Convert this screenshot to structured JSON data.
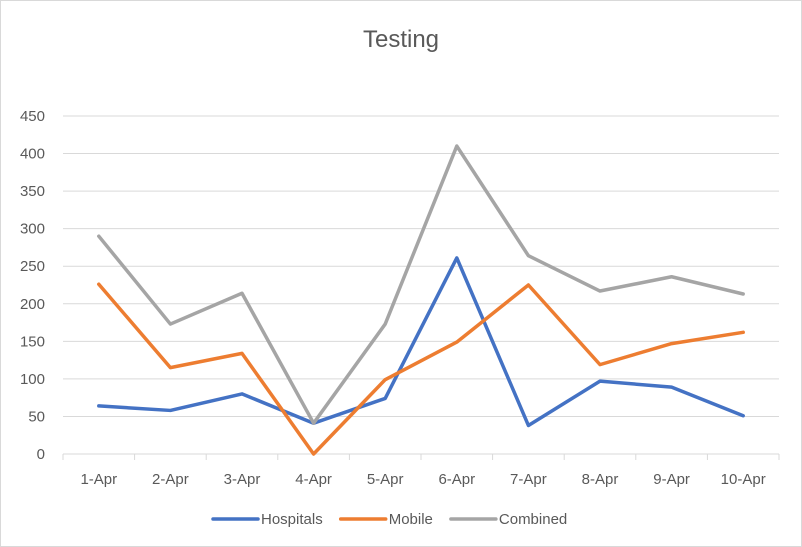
{
  "chart_data": {
    "type": "line",
    "title": "Testing",
    "xlabel": "",
    "ylabel": "",
    "categories": [
      "1-Apr",
      "2-Apr",
      "3-Apr",
      "4-Apr",
      "5-Apr",
      "6-Apr",
      "7-Apr",
      "8-Apr",
      "9-Apr",
      "10-Apr"
    ],
    "ylim": [
      0,
      450
    ],
    "yticks": [
      "0",
      "50",
      "100",
      "150",
      "200",
      "250",
      "300",
      "350",
      "400",
      "450"
    ],
    "grid": true,
    "legend_position": "bottom",
    "series": [
      {
        "name": "Hospitals",
        "color": "#4472C4",
        "values": [
          64,
          58,
          80,
          41,
          74,
          261,
          38,
          97,
          89,
          51
        ]
      },
      {
        "name": "Mobile",
        "color": "#ED7D31",
        "values": [
          226,
          115,
          134,
          0,
          99,
          149,
          225,
          119,
          147,
          162
        ]
      },
      {
        "name": "Combined",
        "color": "#A5A5A5",
        "values": [
          290,
          173,
          214,
          41,
          173,
          410,
          264,
          217,
          236,
          213
        ]
      }
    ]
  }
}
